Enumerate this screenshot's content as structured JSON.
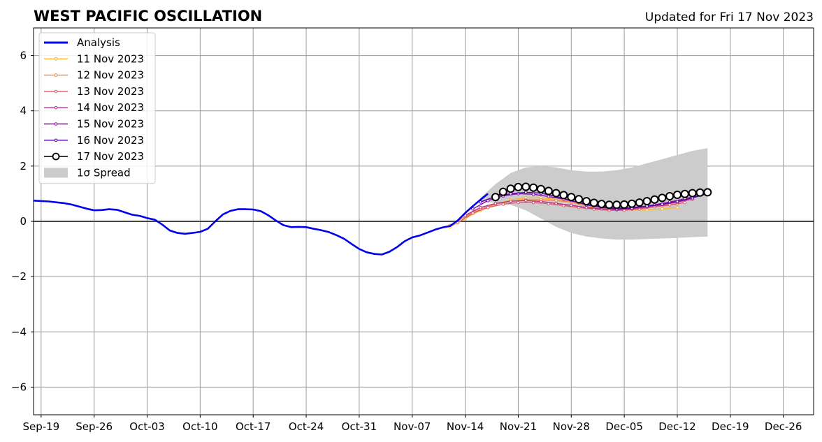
{
  "chart_data": {
    "type": "line",
    "title": "WEST PACIFIC OSCILLATION",
    "subtitle": "Updated for Fri 17 Nov 2023",
    "xlabel": "",
    "ylabel": "",
    "x_range": [
      "2023-09-18",
      "2023-12-30"
    ],
    "ylim": [
      -7,
      7
    ],
    "x_ticks": [
      "Sep-19",
      "Sep-26",
      "Oct-03",
      "Oct-10",
      "Oct-17",
      "Oct-24",
      "Oct-31",
      "Nov-07",
      "Nov-14",
      "Nov-21",
      "Nov-28",
      "Dec-05",
      "Dec-12",
      "Dec-19",
      "Dec-26"
    ],
    "y_ticks": [
      6,
      4,
      2,
      0,
      -2,
      -4,
      -6
    ],
    "y_tick_labels": [
      "6",
      "4",
      "2",
      "0",
      "−2",
      "−4",
      "−6"
    ],
    "grid": true,
    "legend_position": "top-left",
    "analysis": {
      "name": "Analysis",
      "color": "#0000ee",
      "points": [
        [
          "2023-09-18",
          0.75
        ],
        [
          "2023-09-20",
          0.72
        ],
        [
          "2023-09-22",
          0.66
        ],
        [
          "2023-09-23",
          0.61
        ],
        [
          "2023-09-25",
          0.46
        ],
        [
          "2023-09-26",
          0.4
        ],
        [
          "2023-09-27",
          0.41
        ],
        [
          "2023-09-28",
          0.44
        ],
        [
          "2023-09-29",
          0.42
        ],
        [
          "2023-10-01",
          0.24
        ],
        [
          "2023-10-02",
          0.2
        ],
        [
          "2023-10-03",
          0.12
        ],
        [
          "2023-10-04",
          0.06
        ],
        [
          "2023-10-05",
          -0.12
        ],
        [
          "2023-10-06",
          -0.33
        ],
        [
          "2023-10-07",
          -0.42
        ],
        [
          "2023-10-08",
          -0.45
        ],
        [
          "2023-10-09",
          -0.42
        ],
        [
          "2023-10-10",
          -0.38
        ],
        [
          "2023-10-11",
          -0.27
        ],
        [
          "2023-10-12",
          0.0
        ],
        [
          "2023-10-13",
          0.25
        ],
        [
          "2023-10-14",
          0.38
        ],
        [
          "2023-10-15",
          0.44
        ],
        [
          "2023-10-16",
          0.44
        ],
        [
          "2023-10-17",
          0.43
        ],
        [
          "2023-10-18",
          0.37
        ],
        [
          "2023-10-19",
          0.22
        ],
        [
          "2023-10-20",
          0.03
        ],
        [
          "2023-10-21",
          -0.14
        ],
        [
          "2023-10-22",
          -0.21
        ],
        [
          "2023-10-23",
          -0.2
        ],
        [
          "2023-10-24",
          -0.21
        ],
        [
          "2023-10-25",
          -0.27
        ],
        [
          "2023-10-26",
          -0.32
        ],
        [
          "2023-10-27",
          -0.39
        ],
        [
          "2023-10-28",
          -0.5
        ],
        [
          "2023-10-29",
          -0.63
        ],
        [
          "2023-10-30",
          -0.82
        ],
        [
          "2023-10-31",
          -1.0
        ],
        [
          "2023-11-01",
          -1.12
        ],
        [
          "2023-11-02",
          -1.18
        ],
        [
          "2023-11-03",
          -1.2
        ],
        [
          "2023-11-04",
          -1.1
        ],
        [
          "2023-11-05",
          -0.93
        ],
        [
          "2023-11-06",
          -0.72
        ],
        [
          "2023-11-07",
          -0.58
        ],
        [
          "2023-11-08",
          -0.51
        ],
        [
          "2023-11-09",
          -0.41
        ],
        [
          "2023-11-10",
          -0.3
        ],
        [
          "2023-11-11",
          -0.22
        ],
        [
          "2023-11-12",
          -0.17
        ],
        [
          "2023-11-13",
          0.03
        ],
        [
          "2023-11-14",
          0.3
        ],
        [
          "2023-11-15",
          0.55
        ],
        [
          "2023-11-16",
          0.78
        ],
        [
          "2023-11-17",
          1.0
        ]
      ]
    },
    "spread": {
      "name": "1σ Spread",
      "color": "#cccccc",
      "x": [
        "2023-11-16",
        "2023-11-18",
        "2023-11-20",
        "2023-11-22",
        "2023-11-24",
        "2023-11-26",
        "2023-11-28",
        "2023-11-30",
        "2023-12-02",
        "2023-12-04",
        "2023-12-06",
        "2023-12-08",
        "2023-12-10",
        "2023-12-12",
        "2023-12-14",
        "2023-12-16"
      ],
      "upper": [
        0.85,
        1.35,
        1.75,
        1.95,
        2.0,
        1.95,
        1.85,
        1.8,
        1.8,
        1.85,
        1.95,
        2.1,
        2.25,
        2.4,
        2.55,
        2.65
      ],
      "lower": [
        0.7,
        0.68,
        0.6,
        0.4,
        0.1,
        -0.2,
        -0.42,
        -0.55,
        -0.62,
        -0.66,
        -0.66,
        -0.64,
        -0.62,
        -0.6,
        -0.57,
        -0.55
      ]
    },
    "series": [
      {
        "name": "11 Nov 2023",
        "color": "#fdb42f",
        "markers": "small",
        "x": [
          "2023-11-12",
          "2023-11-14",
          "2023-11-16",
          "2023-11-18",
          "2023-11-20",
          "2023-11-22",
          "2023-11-24",
          "2023-11-26",
          "2023-11-28",
          "2023-11-30",
          "2023-12-02",
          "2023-12-04",
          "2023-12-06",
          "2023-12-08",
          "2023-12-10",
          "2023-12-12"
        ],
        "values": [
          -0.2,
          0.1,
          0.4,
          0.62,
          0.78,
          0.85,
          0.85,
          0.8,
          0.72,
          0.62,
          0.5,
          0.45,
          0.42,
          0.42,
          0.45,
          0.5
        ]
      },
      {
        "name": "12 Nov 2023",
        "color": "#f48849",
        "markers": "small",
        "x": [
          "2023-11-12",
          "2023-11-14",
          "2023-11-16",
          "2023-11-18",
          "2023-11-20",
          "2023-11-22",
          "2023-11-24",
          "2023-11-26",
          "2023-11-28",
          "2023-11-30",
          "2023-12-02",
          "2023-12-04",
          "2023-12-06",
          "2023-12-08",
          "2023-12-10",
          "2023-12-12"
        ],
        "values": [
          -0.15,
          0.18,
          0.45,
          0.62,
          0.72,
          0.78,
          0.78,
          0.75,
          0.7,
          0.55,
          0.45,
          0.42,
          0.45,
          0.5,
          0.55,
          0.62
        ]
      },
      {
        "name": "13 Nov 2023",
        "color": "#db5c68",
        "markers": "small",
        "x": [
          "2023-11-13",
          "2023-11-15",
          "2023-11-17",
          "2023-11-19",
          "2023-11-21",
          "2023-11-23",
          "2023-11-25",
          "2023-11-27",
          "2023-11-29",
          "2023-12-01",
          "2023-12-03",
          "2023-12-05",
          "2023-12-07",
          "2023-12-09",
          "2023-12-11",
          "2023-12-13"
        ],
        "values": [
          -0.05,
          0.3,
          0.5,
          0.62,
          0.68,
          0.68,
          0.64,
          0.57,
          0.5,
          0.44,
          0.4,
          0.4,
          0.45,
          0.53,
          0.6,
          0.68
        ]
      },
      {
        "name": "14 Nov 2023",
        "color": "#b83289",
        "markers": "small",
        "x": [
          "2023-11-14",
          "2023-11-16",
          "2023-11-18",
          "2023-11-20",
          "2023-11-22",
          "2023-11-24",
          "2023-11-26",
          "2023-11-28",
          "2023-11-30",
          "2023-12-02",
          "2023-12-04",
          "2023-12-06",
          "2023-12-08",
          "2023-12-10",
          "2023-12-12",
          "2023-12-14"
        ],
        "values": [
          0.22,
          0.5,
          0.65,
          0.73,
          0.75,
          0.72,
          0.65,
          0.58,
          0.5,
          0.45,
          0.42,
          0.45,
          0.52,
          0.6,
          0.7,
          0.8
        ]
      },
      {
        "name": "15 Nov 2023",
        "color": "#8b0aa5",
        "markers": "small",
        "x": [
          "2023-11-15",
          "2023-11-17",
          "2023-11-19",
          "2023-11-21",
          "2023-11-23",
          "2023-11-25",
          "2023-11-27",
          "2023-11-29",
          "2023-12-01",
          "2023-12-03",
          "2023-12-05",
          "2023-12-07",
          "2023-12-09",
          "2023-12-11",
          "2023-12-13",
          "2023-12-15"
        ],
        "values": [
          0.45,
          0.75,
          0.92,
          1.0,
          0.98,
          0.9,
          0.8,
          0.68,
          0.58,
          0.5,
          0.48,
          0.52,
          0.6,
          0.7,
          0.82,
          0.95
        ]
      },
      {
        "name": "16 Nov 2023",
        "color": "#5302a3",
        "markers": "small",
        "x": [
          "2023-11-16",
          "2023-11-18",
          "2023-11-20",
          "2023-11-22",
          "2023-11-24",
          "2023-11-26",
          "2023-11-28",
          "2023-11-30",
          "2023-12-02",
          "2023-12-04",
          "2023-12-06",
          "2023-12-08",
          "2023-12-10",
          "2023-12-12",
          "2023-12-14",
          "2023-12-16"
        ],
        "values": [
          0.7,
          0.9,
          1.0,
          1.05,
          1.02,
          0.9,
          0.75,
          0.6,
          0.5,
          0.45,
          0.48,
          0.55,
          0.62,
          0.72,
          0.85,
          1.0
        ]
      },
      {
        "name": "17 Nov 2023",
        "color": "#000000",
        "markers": "large",
        "x": [
          "2023-11-18",
          "2023-11-19",
          "2023-11-20",
          "2023-11-21",
          "2023-11-22",
          "2023-11-23",
          "2023-11-24",
          "2023-11-25",
          "2023-11-26",
          "2023-11-27",
          "2023-11-28",
          "2023-11-29",
          "2023-11-30",
          "2023-12-01",
          "2023-12-02",
          "2023-12-03",
          "2023-12-04",
          "2023-12-05",
          "2023-12-06",
          "2023-12-07",
          "2023-12-08",
          "2023-12-09",
          "2023-12-10",
          "2023-12-11",
          "2023-12-12",
          "2023-12-13",
          "2023-12-14",
          "2023-12-15",
          "2023-12-16"
        ],
        "values": [
          0.88,
          1.07,
          1.18,
          1.24,
          1.25,
          1.22,
          1.17,
          1.1,
          1.02,
          0.95,
          0.88,
          0.8,
          0.73,
          0.67,
          0.63,
          0.6,
          0.6,
          0.61,
          0.64,
          0.68,
          0.73,
          0.79,
          0.85,
          0.91,
          0.96,
          0.99,
          1.02,
          1.04,
          1.05
        ]
      }
    ]
  }
}
